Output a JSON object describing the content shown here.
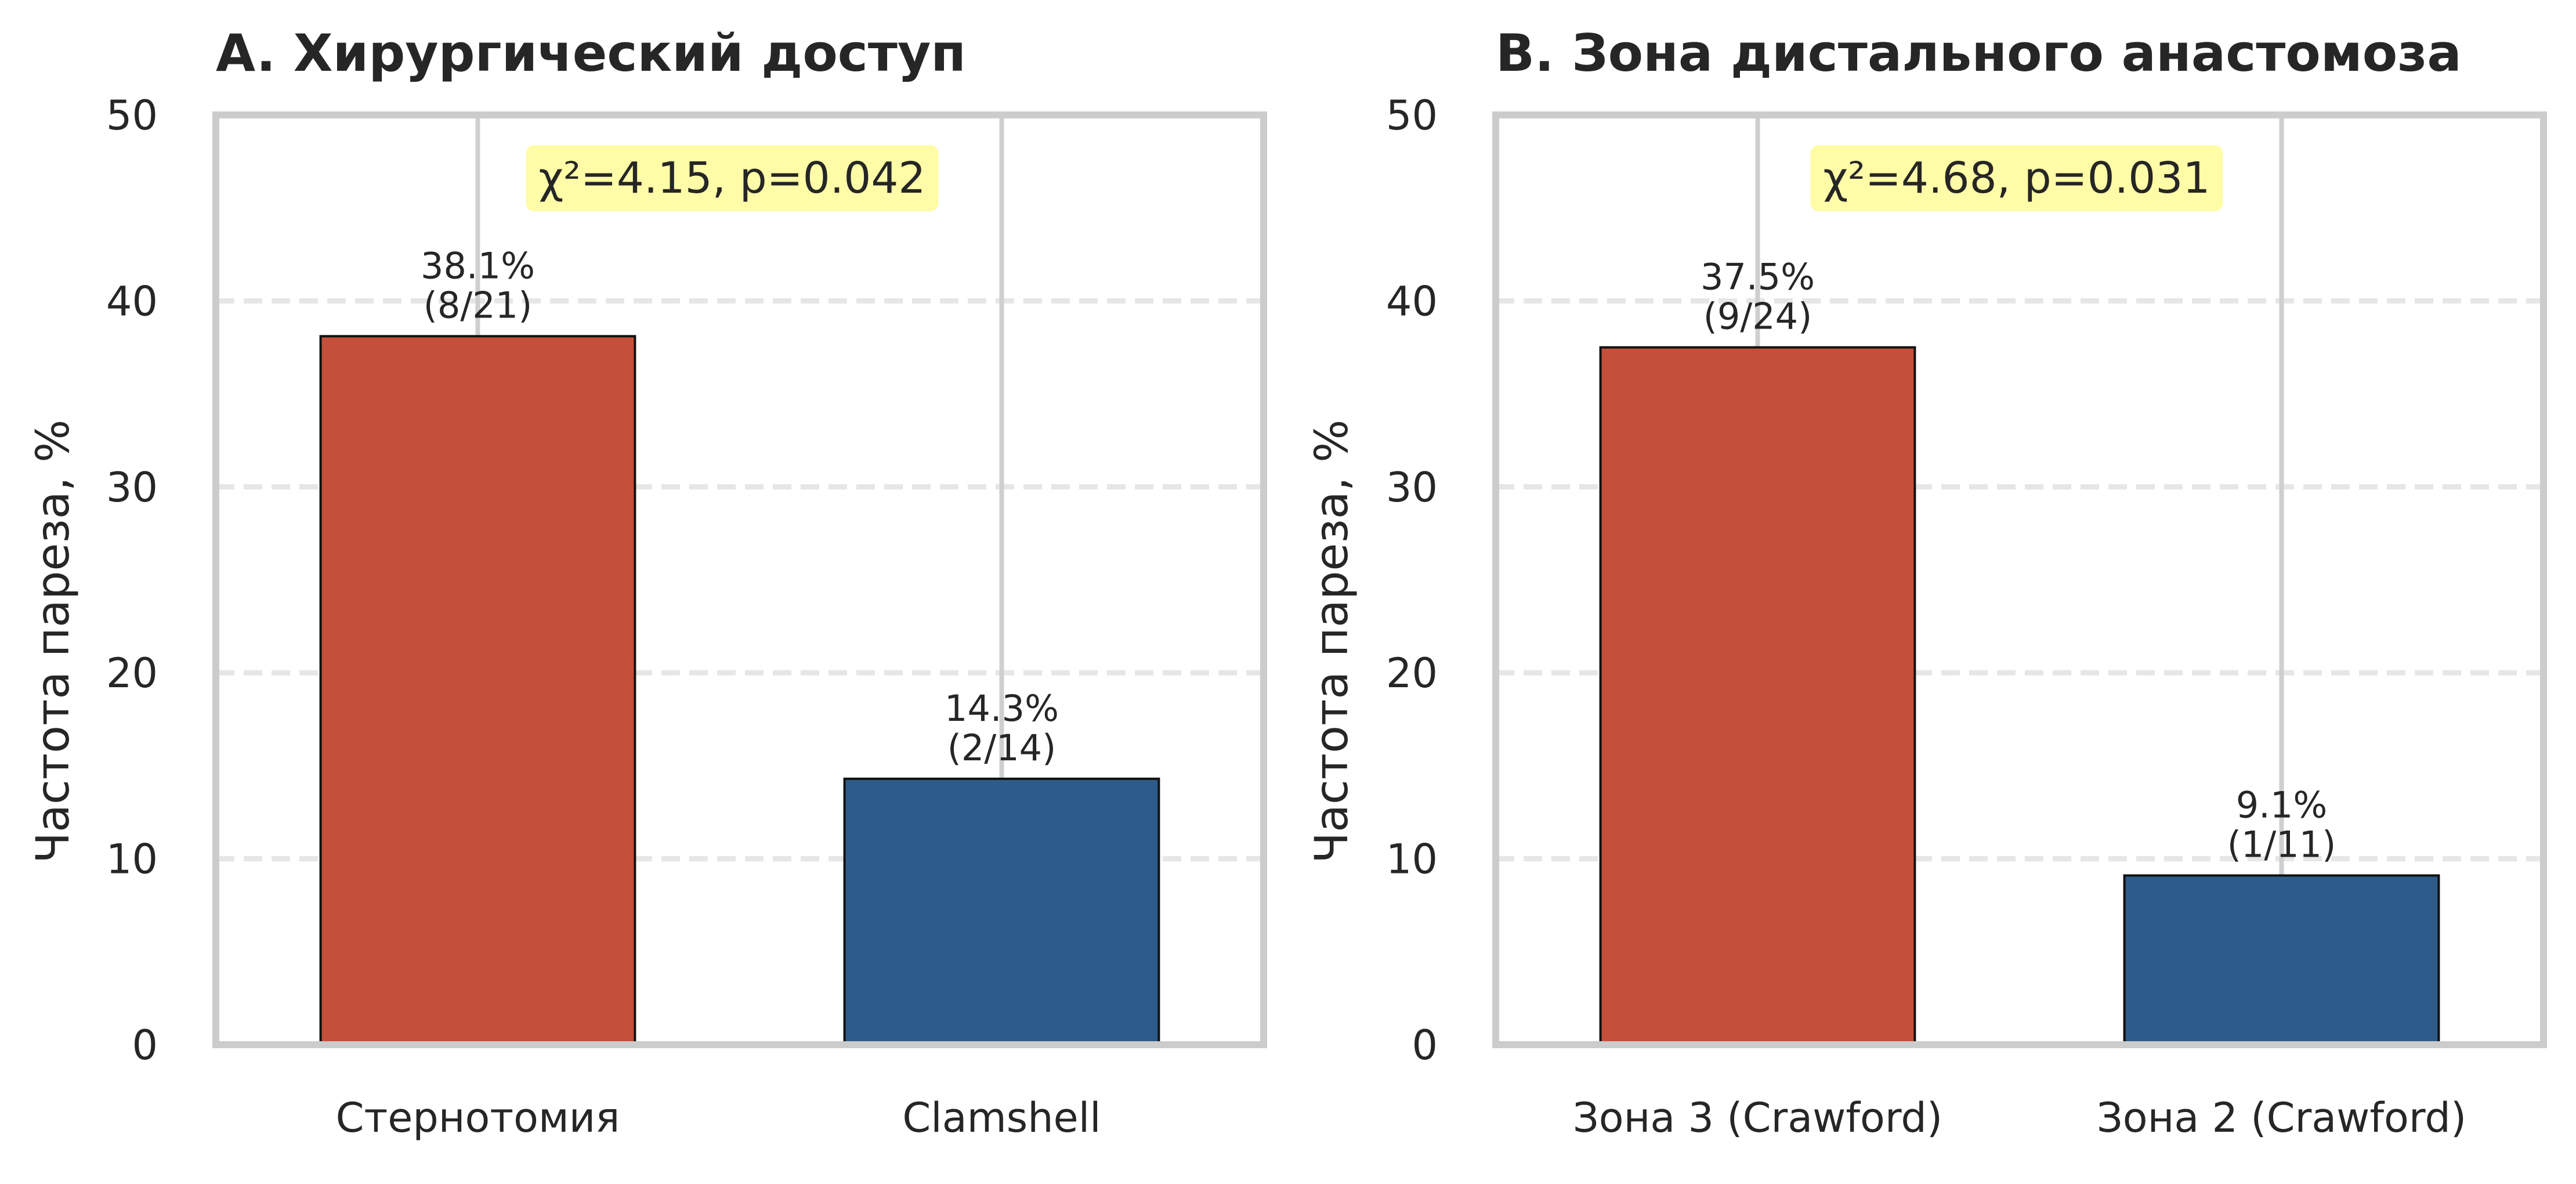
{
  "colors": {
    "bar_primary": "#c44f3a",
    "bar_secondary": "#2e5c8a",
    "stat_box": "#fffca8",
    "grid": "#e6e6e6",
    "spine": "#cccccc",
    "text": "#262626"
  },
  "chart_data": [
    {
      "type": "bar",
      "title": "A. Хирургический доступ",
      "xlabel": "",
      "ylabel": "Частота пареза, %",
      "ylim": [
        0,
        50
      ],
      "yticks": [
        0,
        10,
        20,
        30,
        40,
        50
      ],
      "categories": [
        "Стернотомия",
        "Clamshell"
      ],
      "values": [
        38.1,
        14.3
      ],
      "value_labels": [
        "38.1%",
        "14.3%"
      ],
      "count_labels": [
        "(8/21)",
        "(2/14)"
      ],
      "bar_colors": [
        "#c44f3a",
        "#2e5c8a"
      ],
      "stat_text": "χ²=4.15, p=0.042",
      "grid": true,
      "legend": "none"
    },
    {
      "type": "bar",
      "title": "B. Зона дистального анастомоза",
      "xlabel": "",
      "ylabel": "Частота пареза, %",
      "ylim": [
        0,
        50
      ],
      "yticks": [
        0,
        10,
        20,
        30,
        40,
        50
      ],
      "categories": [
        "Зона 3 (Crawford)",
        "Зона 2 (Crawford)"
      ],
      "values": [
        37.5,
        9.1
      ],
      "value_labels": [
        "37.5%",
        "9.1%"
      ],
      "count_labels": [
        "(9/24)",
        "(1/11)"
      ],
      "bar_colors": [
        "#c44f3a",
        "#2e5c8a"
      ],
      "stat_text": "χ²=4.68, p=0.031",
      "grid": true,
      "legend": "none"
    }
  ]
}
